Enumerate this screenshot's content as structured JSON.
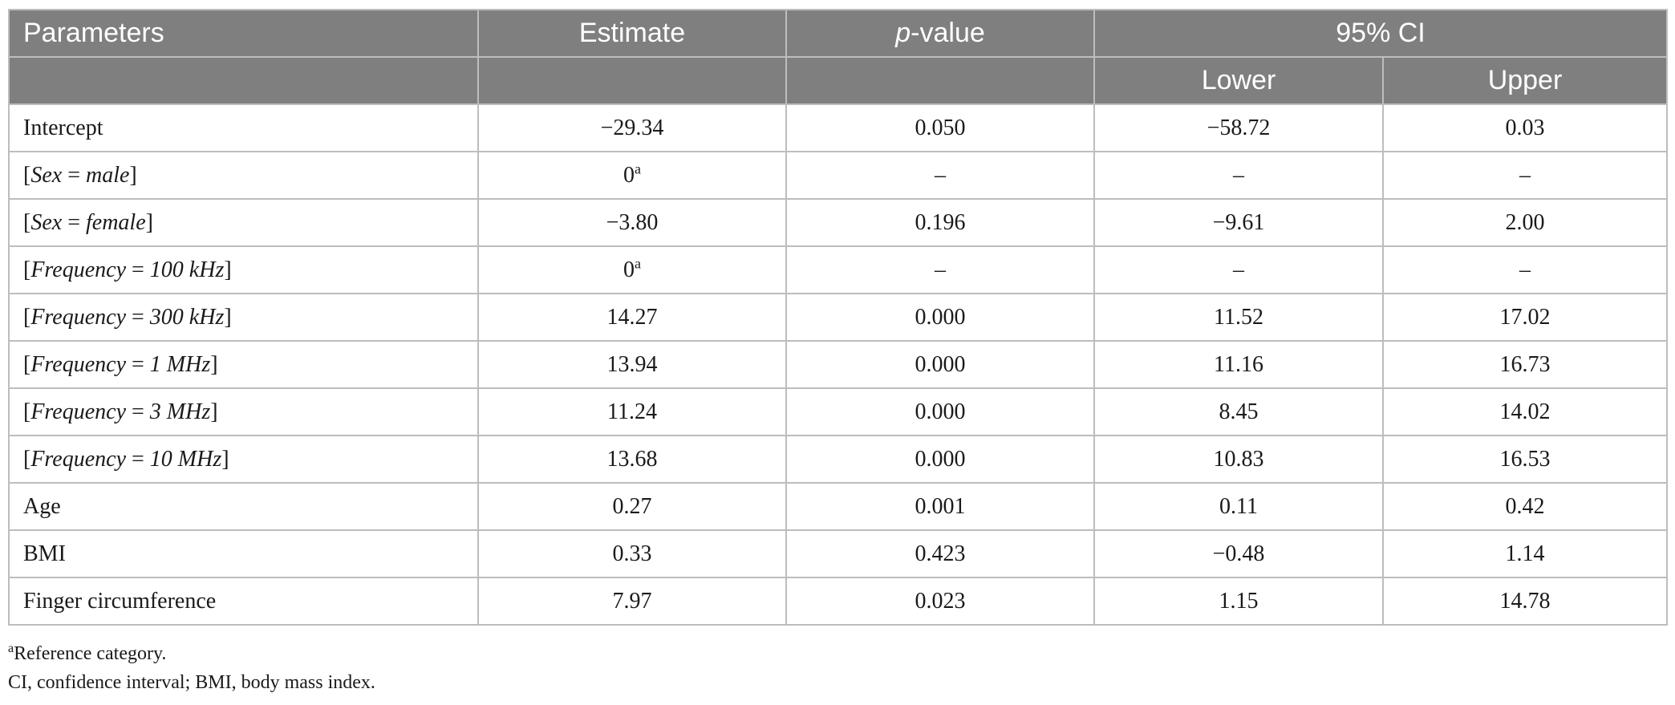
{
  "header": {
    "parameters": "Parameters",
    "estimate": "Estimate",
    "p_prefix": "p",
    "p_suffix": "-value",
    "ci": "95% CI",
    "lower": "Lower",
    "upper": "Upper"
  },
  "rows": [
    {
      "pre": "",
      "var": "",
      "eq": "",
      "val": "",
      "post": "",
      "label": "Intercept",
      "estimate": "−29.34",
      "sup": "",
      "p": "0.050",
      "lower": "−58.72",
      "upper": "0.03"
    },
    {
      "pre": "[",
      "var": "Sex",
      "eq": " = ",
      "val": "male",
      "post": "]",
      "label": "",
      "estimate": "0",
      "sup": "a",
      "p": "–",
      "lower": "–",
      "upper": "–"
    },
    {
      "pre": "[",
      "var": "Sex",
      "eq": " = ",
      "val": "female",
      "post": "]",
      "label": "",
      "estimate": "−3.80",
      "sup": "",
      "p": "0.196",
      "lower": "−9.61",
      "upper": "2.00"
    },
    {
      "pre": "[",
      "var": "Frequency",
      "eq": " = ",
      "val": "100 kHz",
      "post": "]",
      "label": "",
      "estimate": "0",
      "sup": "a",
      "p": "–",
      "lower": "–",
      "upper": "–"
    },
    {
      "pre": "[",
      "var": "Frequency",
      "eq": " = ",
      "val": "300 kHz",
      "post": "]",
      "label": "",
      "estimate": "14.27",
      "sup": "",
      "p": "0.000",
      "lower": "11.52",
      "upper": "17.02"
    },
    {
      "pre": "[",
      "var": "Frequency",
      "eq": " = ",
      "val": "1 MHz",
      "post": "]",
      "label": "",
      "estimate": "13.94",
      "sup": "",
      "p": "0.000",
      "lower": "11.16",
      "upper": "16.73"
    },
    {
      "pre": "[",
      "var": "Frequency",
      "eq": " = ",
      "val": "3 MHz",
      "post": "]",
      "label": "",
      "estimate": "11.24",
      "sup": "",
      "p": "0.000",
      "lower": "8.45",
      "upper": "14.02"
    },
    {
      "pre": "[",
      "var": "Frequency",
      "eq": " = ",
      "val": "10 MHz",
      "post": "]",
      "label": "",
      "estimate": "13.68",
      "sup": "",
      "p": "0.000",
      "lower": "10.83",
      "upper": "16.53"
    },
    {
      "pre": "",
      "var": "",
      "eq": "",
      "val": "",
      "post": "",
      "label": "Age",
      "estimate": "0.27",
      "sup": "",
      "p": "0.001",
      "lower": "0.11",
      "upper": "0.42"
    },
    {
      "pre": "",
      "var": "",
      "eq": "",
      "val": "",
      "post": "",
      "label": "BMI",
      "estimate": "0.33",
      "sup": "",
      "p": "0.423",
      "lower": "−0.48",
      "upper": "1.14"
    },
    {
      "pre": "",
      "var": "",
      "eq": "",
      "val": "",
      "post": "",
      "label": "Finger circumference",
      "estimate": "7.97",
      "sup": "",
      "p": "0.023",
      "lower": "1.15",
      "upper": "14.78"
    }
  ],
  "notes": {
    "footnote_mark": "a",
    "footnote_text": "Reference category.",
    "abbreviations": "CI, confidence interval; BMI, body mass index."
  }
}
